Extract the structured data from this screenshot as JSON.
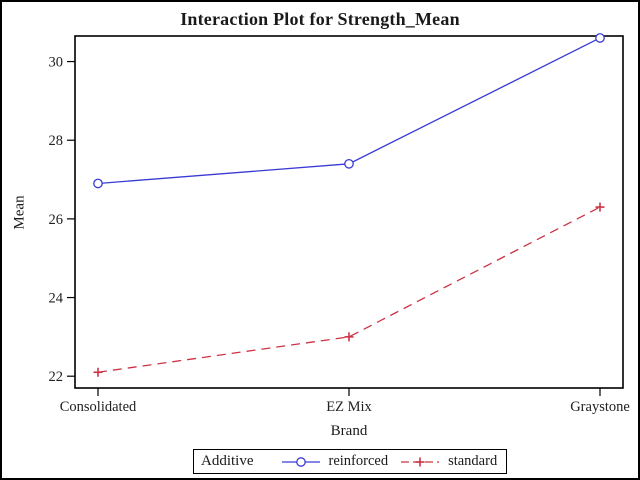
{
  "chart_data": {
    "type": "line",
    "title": "Interaction Plot for Strength_Mean",
    "xlabel": "Brand",
    "ylabel": "Mean",
    "categories": [
      "Consolidated",
      "EZ Mix",
      "Graystone"
    ],
    "series": [
      {
        "name": "reinforced",
        "values": [
          26.9,
          27.4,
          30.6
        ],
        "color": "#3a3ad6",
        "line": "solid",
        "marker": "circle"
      },
      {
        "name": "standard",
        "values": [
          22.1,
          23.0,
          26.3
        ],
        "color": "#cc3344",
        "line": "dashed",
        "marker": "plus"
      }
    ],
    "ylim": [
      21.7,
      30.65
    ],
    "yticks": [
      22,
      24,
      26,
      28,
      30
    ],
    "grid": false,
    "legend": {
      "title": "Additive",
      "position": "bottom"
    },
    "colors": {
      "frame": "#000000",
      "background": "#ffffff",
      "tick_text": "#222222"
    }
  }
}
